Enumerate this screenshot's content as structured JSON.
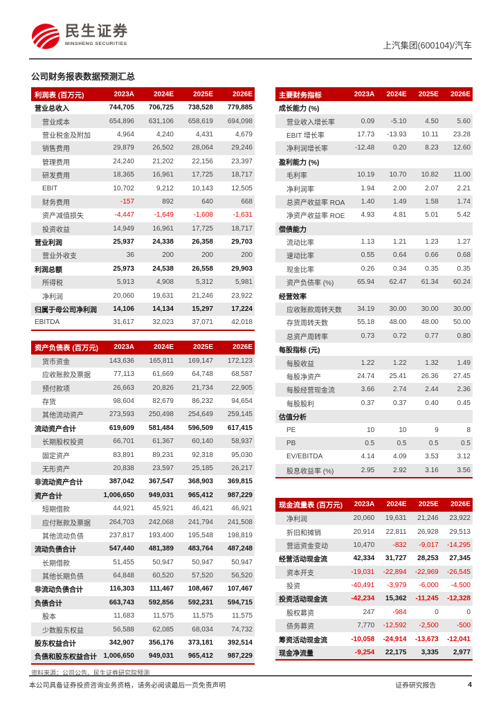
{
  "header": {
    "logo_cn": "民生证券",
    "logo_en": "MINSHENG SECURITIES",
    "stock_label": "上汽集团(600104)/汽车"
  },
  "page_title": "公司财务报表数据预测汇总",
  "columns": [
    "2023A",
    "2024E",
    "2025E",
    "2026E"
  ],
  "colors": {
    "table_header_red": "#c00000",
    "negative_red": "#e60000",
    "logo_red": "#e60012",
    "stripe_gray": "#e7e7e7"
  },
  "tables": {
    "income": {
      "title": "利润表 (百万元)",
      "neg_red": true,
      "rows": [
        {
          "label": "营业总收入",
          "style": "bold",
          "values": [
            "744,705",
            "706,725",
            "738,528",
            "779,885"
          ]
        },
        {
          "label": "营业成本",
          "style": "indent",
          "values": [
            "654,896",
            "631,106",
            "658,619",
            "694,098"
          ]
        },
        {
          "label": "营业税金及附加",
          "style": "indent",
          "values": [
            "4,964",
            "4,240",
            "4,431",
            "4,679"
          ]
        },
        {
          "label": "销售费用",
          "style": "indent",
          "values": [
            "29,879",
            "26,502",
            "28,064",
            "29,246"
          ]
        },
        {
          "label": "管理费用",
          "style": "indent",
          "values": [
            "24,240",
            "21,202",
            "22,156",
            "23,397"
          ]
        },
        {
          "label": "研发费用",
          "style": "indent",
          "values": [
            "18,365",
            "16,961",
            "17,725",
            "18,717"
          ]
        },
        {
          "label": "EBIT",
          "style": "indent",
          "values": [
            "10,702",
            "9,212",
            "10,143",
            "12,505"
          ]
        },
        {
          "label": "财务费用",
          "style": "indent",
          "values": [
            "-157",
            "892",
            "640",
            "668"
          ]
        },
        {
          "label": "资产减值损失",
          "style": "indent",
          "values": [
            "-4,447",
            "-1,649",
            "-1,608",
            "-1,631"
          ]
        },
        {
          "label": "投资收益",
          "style": "indent",
          "values": [
            "14,949",
            "16,961",
            "17,725",
            "18,717"
          ]
        },
        {
          "label": "营业利润",
          "style": "bold",
          "values": [
            "25,937",
            "24,338",
            "26,358",
            "29,703"
          ]
        },
        {
          "label": "营业外收支",
          "style": "indent",
          "values": [
            "36",
            "200",
            "200",
            "200"
          ]
        },
        {
          "label": "利润总额",
          "style": "bold",
          "values": [
            "25,973",
            "24,538",
            "26,558",
            "29,903"
          ]
        },
        {
          "label": "所得税",
          "style": "indent",
          "values": [
            "5,913",
            "4,908",
            "5,312",
            "5,981"
          ]
        },
        {
          "label": "净利润",
          "style": "indent",
          "values": [
            "20,060",
            "19,631",
            "21,246",
            "23,922"
          ]
        },
        {
          "label": "归属于母公司净利润",
          "style": "bold",
          "values": [
            "14,106",
            "14,134",
            "15,297",
            "17,224"
          ]
        },
        {
          "label": "EBITDA",
          "style": "plain",
          "values": [
            "31,617",
            "32,023",
            "37,071",
            "42,018"
          ]
        }
      ]
    },
    "balance": {
      "title": "资产负债表 (百万元)",
      "neg_red": true,
      "rows": [
        {
          "label": "货币资金",
          "style": "indent",
          "values": [
            "143,636",
            "165,811",
            "169,147",
            "172,123"
          ]
        },
        {
          "label": "应收账款及票据",
          "style": "indent",
          "values": [
            "77,113",
            "61,669",
            "64,748",
            "68,587"
          ]
        },
        {
          "label": "预付款项",
          "style": "indent",
          "values": [
            "26,663",
            "20,826",
            "21,734",
            "22,905"
          ]
        },
        {
          "label": "存货",
          "style": "indent",
          "values": [
            "98,604",
            "82,679",
            "86,232",
            "94,654"
          ]
        },
        {
          "label": "其他流动资产",
          "style": "indent",
          "values": [
            "273,593",
            "250,498",
            "254,649",
            "259,145"
          ]
        },
        {
          "label": "流动资产合计",
          "style": "bold",
          "values": [
            "619,609",
            "581,484",
            "596,509",
            "617,415"
          ]
        },
        {
          "label": "长期股权投资",
          "style": "indent",
          "values": [
            "66,701",
            "61,367",
            "60,140",
            "58,937"
          ]
        },
        {
          "label": "固定资产",
          "style": "indent",
          "values": [
            "83,891",
            "89,231",
            "92,318",
            "95,030"
          ]
        },
        {
          "label": "无形资产",
          "style": "indent",
          "values": [
            "20,838",
            "23,597",
            "25,185",
            "26,217"
          ]
        },
        {
          "label": "非流动资产合计",
          "style": "bold",
          "values": [
            "387,042",
            "367,547",
            "368,903",
            "369,815"
          ]
        },
        {
          "label": "资产合计",
          "style": "bold",
          "values": [
            "1,006,650",
            "949,031",
            "965,412",
            "987,229"
          ]
        },
        {
          "label": "短期借款",
          "style": "indent",
          "values": [
            "44,921",
            "45,921",
            "46,421",
            "46,921"
          ]
        },
        {
          "label": "应付账款及票据",
          "style": "indent",
          "values": [
            "264,703",
            "242,068",
            "241,794",
            "241,508"
          ]
        },
        {
          "label": "其他流动负债",
          "style": "indent",
          "values": [
            "237,817",
            "193,400",
            "195,548",
            "198,819"
          ]
        },
        {
          "label": "流动负债合计",
          "style": "bold",
          "values": [
            "547,440",
            "481,389",
            "483,764",
            "487,248"
          ]
        },
        {
          "label": "长期借款",
          "style": "indent",
          "values": [
            "51,455",
            "50,947",
            "50,947",
            "50,947"
          ]
        },
        {
          "label": "其他长期负债",
          "style": "indent",
          "values": [
            "64,848",
            "60,520",
            "57,520",
            "56,520"
          ]
        },
        {
          "label": "非流动负债合计",
          "style": "bold",
          "values": [
            "116,303",
            "111,467",
            "108,467",
            "107,467"
          ]
        },
        {
          "label": "负债合计",
          "style": "bold",
          "values": [
            "663,743",
            "592,856",
            "592,231",
            "594,715"
          ]
        },
        {
          "label": "股本",
          "style": "indent",
          "values": [
            "11,683",
            "11,575",
            "11,575",
            "11,575"
          ]
        },
        {
          "label": "少数股东权益",
          "style": "indent",
          "values": [
            "56,588",
            "62,085",
            "68,034",
            "74,732"
          ]
        },
        {
          "label": "股东权益合计",
          "style": "bold",
          "values": [
            "342,907",
            "356,176",
            "373,181",
            "392,514"
          ]
        },
        {
          "label": "负债和股东权益合计",
          "style": "bold",
          "values": [
            "1,006,650",
            "949,031",
            "965,412",
            "987,229"
          ]
        }
      ]
    },
    "indicators": {
      "title": "主要财务指标",
      "neg_red": false,
      "rows": [
        {
          "label": "成长能力 (%)",
          "style": "section",
          "values": [
            "",
            "",
            "",
            ""
          ]
        },
        {
          "label": "营业收入增长率",
          "style": "indent",
          "values": [
            "0.09",
            "-5.10",
            "4.50",
            "5.60"
          ]
        },
        {
          "label": "EBIT 增长率",
          "style": "indent",
          "values": [
            "17.73",
            "-13.93",
            "10.11",
            "23.28"
          ]
        },
        {
          "label": "净利润增长率",
          "style": "indent",
          "values": [
            "-12.48",
            "0.20",
            "8.23",
            "12.60"
          ]
        },
        {
          "label": "盈利能力 (%)",
          "style": "section",
          "values": [
            "",
            "",
            "",
            ""
          ]
        },
        {
          "label": "毛利率",
          "style": "indent",
          "values": [
            "10.19",
            "10.70",
            "10.82",
            "11.00"
          ]
        },
        {
          "label": "净利润率",
          "style": "indent",
          "values": [
            "1.94",
            "2.00",
            "2.07",
            "2.21"
          ]
        },
        {
          "label": "总资产收益率 ROA",
          "style": "indent",
          "values": [
            "1.40",
            "1.49",
            "1.58",
            "1.74"
          ]
        },
        {
          "label": "净资产收益率 ROE",
          "style": "indent",
          "values": [
            "4.93",
            "4.81",
            "5.01",
            "5.42"
          ]
        },
        {
          "label": "偿债能力",
          "style": "section",
          "values": [
            "",
            "",
            "",
            ""
          ]
        },
        {
          "label": "流动比率",
          "style": "indent",
          "values": [
            "1.13",
            "1.21",
            "1.23",
            "1.27"
          ]
        },
        {
          "label": "速动比率",
          "style": "indent",
          "values": [
            "0.55",
            "0.64",
            "0.66",
            "0.68"
          ]
        },
        {
          "label": "现金比率",
          "style": "indent",
          "values": [
            "0.26",
            "0.34",
            "0.35",
            "0.35"
          ]
        },
        {
          "label": "资产负债率 (%)",
          "style": "indent",
          "values": [
            "65.94",
            "62.47",
            "61.34",
            "60.24"
          ]
        },
        {
          "label": "经营效率",
          "style": "section",
          "values": [
            "",
            "",
            "",
            ""
          ]
        },
        {
          "label": "应收账款周转天数",
          "style": "indent",
          "values": [
            "34.19",
            "30.00",
            "30.00",
            "30.00"
          ]
        },
        {
          "label": "存货周转天数",
          "style": "indent",
          "values": [
            "55.18",
            "48.00",
            "48.00",
            "50.00"
          ]
        },
        {
          "label": "总资产周转率",
          "style": "indent",
          "values": [
            "0.73",
            "0.72",
            "0.77",
            "0.80"
          ]
        },
        {
          "label": "每股指标 (元)",
          "style": "section",
          "values": [
            "",
            "",
            "",
            ""
          ]
        },
        {
          "label": "每股收益",
          "style": "indent",
          "values": [
            "1.22",
            "1.22",
            "1.32",
            "1.49"
          ]
        },
        {
          "label": "每股净资产",
          "style": "indent",
          "values": [
            "24.74",
            "25.41",
            "26.36",
            "27.45"
          ]
        },
        {
          "label": "每股经营现金流",
          "style": "indent",
          "values": [
            "3.66",
            "2.74",
            "2.44",
            "2.36"
          ]
        },
        {
          "label": "每股股利",
          "style": "indent",
          "values": [
            "0.37",
            "0.37",
            "0.40",
            "0.45"
          ]
        },
        {
          "label": "估值分析",
          "style": "section",
          "values": [
            "",
            "",
            "",
            ""
          ]
        },
        {
          "label": "PE",
          "style": "indent",
          "values": [
            "10",
            "10",
            "9",
            "8"
          ]
        },
        {
          "label": "PB",
          "style": "indent",
          "values": [
            "0.5",
            "0.5",
            "0.5",
            "0.5"
          ]
        },
        {
          "label": "EV/EBITDA",
          "style": "indent",
          "values": [
            "4.14",
            "4.09",
            "3.53",
            "3.12"
          ]
        },
        {
          "label": "股息收益率 (%)",
          "style": "indent",
          "values": [
            "2.95",
            "2.92",
            "3.16",
            "3.56"
          ]
        }
      ]
    },
    "cashflow": {
      "title": "现金流量表 (百万元)",
      "neg_red": true,
      "rows": [
        {
          "label": "净利润",
          "style": "indent",
          "values": [
            "20,060",
            "19,631",
            "21,246",
            "23,922"
          ]
        },
        {
          "label": "折旧和摊销",
          "style": "indent",
          "values": [
            "20,914",
            "22,811",
            "26,928",
            "29,513"
          ]
        },
        {
          "label": "营运资金变动",
          "style": "indent",
          "values": [
            "10,470",
            "-832",
            "-9,017",
            "-14,295"
          ]
        },
        {
          "label": "经营活动现金流",
          "style": "bold",
          "values": [
            "42,334",
            "31,727",
            "28,253",
            "27,345"
          ]
        },
        {
          "label": "资本开支",
          "style": "indent",
          "values": [
            "-19,031",
            "-22,894",
            "-22,969",
            "-26,545"
          ]
        },
        {
          "label": "投资",
          "style": "indent",
          "values": [
            "-40,491",
            "-3,979",
            "-6,000",
            "-4,500"
          ]
        },
        {
          "label": "投资活动现金流",
          "style": "bold",
          "values": [
            "-42,234",
            "15,362",
            "-11,245",
            "-12,328"
          ]
        },
        {
          "label": "股权募资",
          "style": "indent",
          "values": [
            "247",
            "-984",
            "0",
            "0"
          ]
        },
        {
          "label": "债务募资",
          "style": "indent",
          "values": [
            "7,770",
            "-12,592",
            "-2,500",
            "-500"
          ]
        },
        {
          "label": "筹资活动现金流",
          "style": "bold",
          "values": [
            "-10,058",
            "-24,914",
            "-13,673",
            "-12,041"
          ]
        },
        {
          "label": "现金净流量",
          "style": "bold",
          "values": [
            "-9,254",
            "22,175",
            "3,335",
            "2,977"
          ]
        }
      ]
    }
  },
  "source_note": "资料来源：公司公告、民生证券研究院预测",
  "footer": {
    "left": "本公司具备证券投资咨询业务资格，请务必阅读最后一页免责声明",
    "right": "证券研究报告",
    "page": "4"
  }
}
